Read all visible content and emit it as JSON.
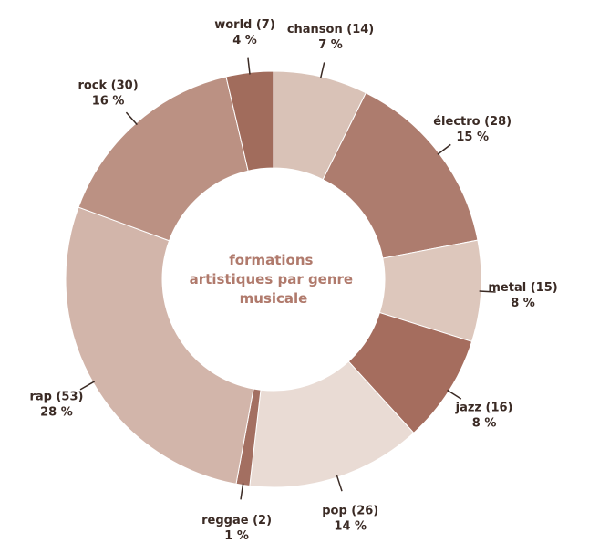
{
  "chart_data": {
    "type": "pie",
    "title_lines": [
      "formations",
      "artistiques par genre",
      "musicale"
    ],
    "slices": [
      {
        "category": "chanson",
        "value": 14,
        "label": "chanson (14)",
        "percent_label": "7 %",
        "color": "#d9c2b7"
      },
      {
        "category": "électro",
        "value": 28,
        "label": "électro (28)",
        "percent_label": "15 %",
        "color": "#ad7c6e"
      },
      {
        "category": "metal",
        "value": 15,
        "label": "metal (15)",
        "percent_label": "8 %",
        "color": "#ddc7bc"
      },
      {
        "category": "jazz",
        "value": 16,
        "label": "jazz (16)",
        "percent_label": "8 %",
        "color": "#a56d5e"
      },
      {
        "category": "pop",
        "value": 26,
        "label": "pop (26)",
        "percent_label": "14 %",
        "color": "#e9dbd4"
      },
      {
        "category": "reggae",
        "value": 2,
        "label": "reggae (2)",
        "percent_label": "1 %",
        "color": "#a36f61"
      },
      {
        "category": "rap",
        "value": 53,
        "label": "rap (53)",
        "percent_label": "28 %",
        "color": "#d2b5aa"
      },
      {
        "category": "rock",
        "value": 30,
        "label": "rock (30)",
        "percent_label": "16 %",
        "color": "#bb9183"
      },
      {
        "category": "world",
        "value": 7,
        "label": "world (7)",
        "percent_label": "4 %",
        "color": "#a16c5c"
      }
    ]
  }
}
